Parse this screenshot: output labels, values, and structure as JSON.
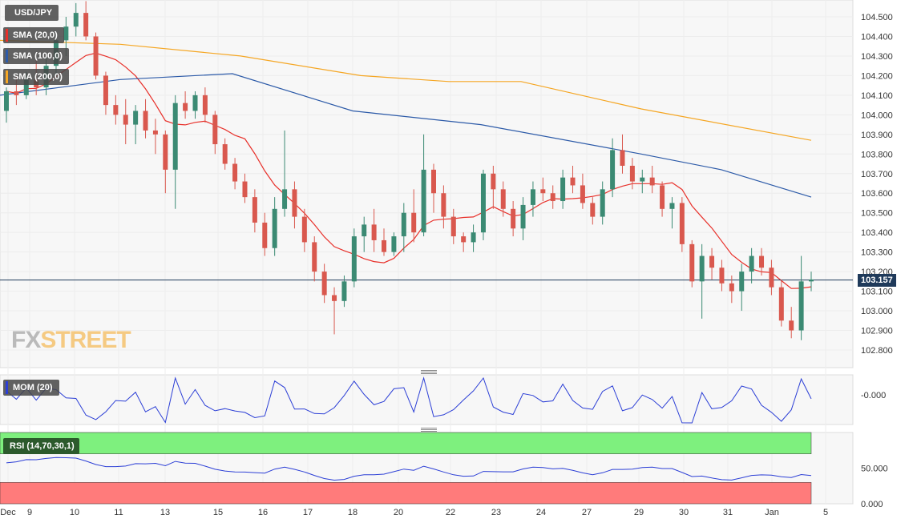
{
  "header": {
    "symbol": "USD/JPY"
  },
  "legend": [
    {
      "label": "SMA (20,0)",
      "color": "#e8302a"
    },
    {
      "label": "SMA (100,0)",
      "color": "#2c5aa8"
    },
    {
      "label": "SMA (200,0)",
      "color": "#f5a623"
    }
  ],
  "mom_label": "MOM (20)",
  "rsi_label": "RSI (14,70,30,1)",
  "current_price": "103.157",
  "logo": {
    "part1": "FX",
    "part2": "STREET"
  },
  "chart_data": {
    "type": "candlestick",
    "main": {
      "y_ticks": [
        "104.500",
        "104.400",
        "104.300",
        "104.200",
        "104.100",
        "104.000",
        "103.900",
        "103.800",
        "103.700",
        "103.600",
        "103.500",
        "103.400",
        "103.300",
        "103.200",
        "103.100",
        "103.000",
        "102.900",
        "102.800"
      ],
      "ylim": [
        102.72,
        104.58
      ],
      "current_price": 103.157
    },
    "x_ticks": [
      "Dec",
      "9",
      "10",
      "11",
      "13",
      "15",
      "16",
      "17",
      "18",
      "20",
      "22",
      "23",
      "24",
      "27",
      "29",
      "30",
      "31",
      "Jan",
      "5"
    ],
    "mom": {
      "y_ticks": [
        "-0.000"
      ]
    },
    "rsi": {
      "y_ticks": [
        "50.000",
        "0.000"
      ],
      "overbought": 70,
      "oversold": 30
    }
  }
}
